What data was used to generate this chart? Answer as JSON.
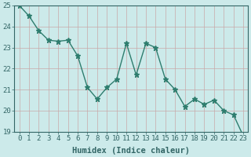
{
  "x": [
    0,
    1,
    2,
    3,
    4,
    5,
    6,
    7,
    8,
    9,
    10,
    11,
    12,
    13,
    14,
    15,
    16,
    17,
    18,
    19,
    20,
    21,
    22,
    23
  ],
  "y": [
    25.0,
    24.5,
    23.8,
    23.35,
    23.3,
    23.35,
    22.6,
    21.1,
    20.55,
    21.1,
    21.5,
    23.2,
    21.7,
    23.2,
    23.0,
    21.5,
    21.0,
    20.2,
    20.55,
    20.3,
    20.5,
    20.0,
    19.8,
    18.8
  ],
  "line_color": "#2e7d6e",
  "marker": "*",
  "bg_color": "#cceaea",
  "grid_color": "#c8a8a8",
  "xlabel": "Humidex (Indice chaleur)",
  "ylim": [
    19,
    25
  ],
  "xlim_min": -0.5,
  "xlim_max": 23.5,
  "yticks": [
    19,
    20,
    21,
    22,
    23,
    24,
    25
  ],
  "xticks": [
    0,
    1,
    2,
    3,
    4,
    5,
    6,
    7,
    8,
    9,
    10,
    11,
    12,
    13,
    14,
    15,
    16,
    17,
    18,
    19,
    20,
    21,
    22,
    23
  ],
  "tick_fontsize": 6.5,
  "xlabel_fontsize": 7.5,
  "linewidth": 1.0,
  "markersize": 4.5,
  "spine_color": "#336666"
}
